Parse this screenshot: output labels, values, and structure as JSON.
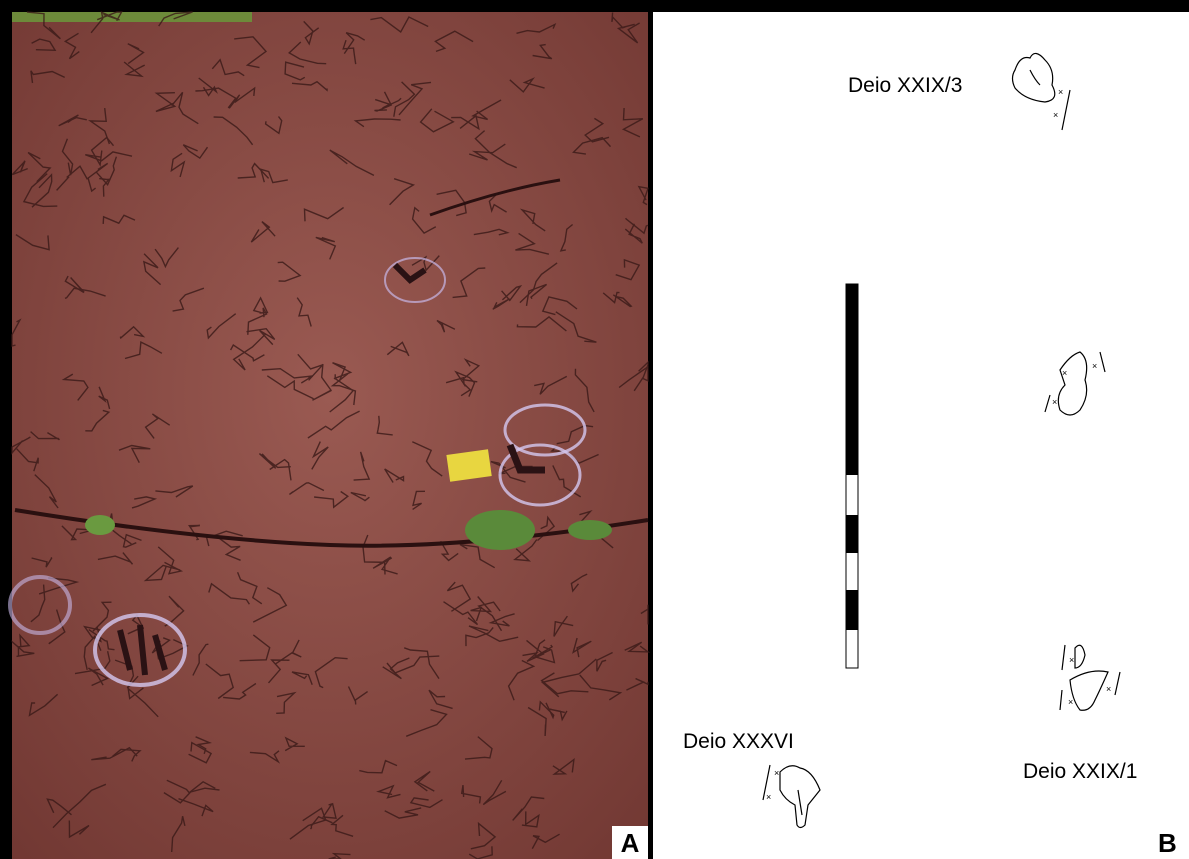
{
  "panels": [
    {
      "label": "A"
    },
    {
      "label": "B",
      "tracks": [
        {
          "label": "Deio XXIX/3"
        },
        {
          "label": "Deio XXXVI"
        },
        {
          "label": "Deio XXIX/1"
        }
      ]
    }
  ]
}
